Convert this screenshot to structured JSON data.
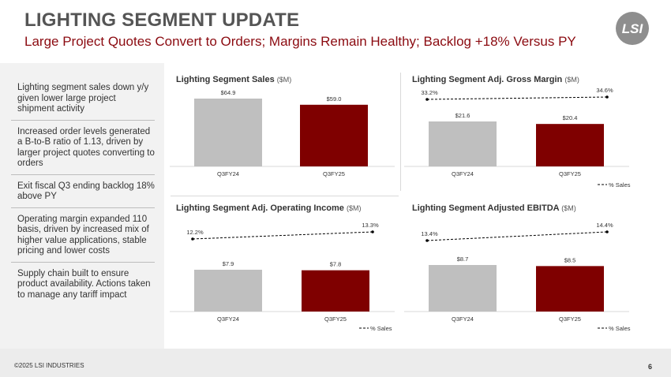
{
  "header": {
    "title": "LIGHTING SEGMENT UPDATE",
    "subtitle": "Large Project Quotes Convert to Orders; Margins Remain Healthy; Backlog +18% Versus PY",
    "logo_text": "LSI",
    "logo_color": "#8e8e8e"
  },
  "bullets": [
    "Lighting segment sales down y/y given lower large project shipment activity",
    "Increased order levels generated a B-to-B ratio of 1.13, driven by larger project quotes converting to orders",
    "Exit fiscal Q3 ending backlog 18% above PY",
    "Operating margin expanded 110 basis, driven by increased mix of higher value applications, stable pricing and lower costs",
    "Supply chain built to ensure product availability.  Actions taken to manage any tariff impact"
  ],
  "colors": {
    "prior_bar": "#bfbfbf",
    "current_bar": "#7f0000",
    "subtitle": "#8b0a10"
  },
  "chart_data": [
    {
      "type": "bar",
      "title": "Lighting Segment Sales",
      "unit": "($M)",
      "categories": [
        "Q3FY24",
        "Q3FY25"
      ],
      "values": [
        64.9,
        59.0
      ],
      "value_labels": [
        "$64.9",
        "$59.0"
      ],
      "legend": ""
    },
    {
      "type": "bar",
      "title": "Lighting Segment Adj. Gross Margin",
      "unit": "($M)",
      "categories": [
        "Q3FY24",
        "Q3FY25"
      ],
      "values": [
        21.6,
        20.4
      ],
      "value_labels": [
        "$21.6",
        "$20.4"
      ],
      "line_values": [
        33.2,
        34.6
      ],
      "line_labels": [
        "33.2%",
        "34.6%"
      ],
      "legend": "% Sales"
    },
    {
      "type": "bar",
      "title": "Lighting Segment Adj. Operating Income",
      "unit": "($M)",
      "categories": [
        "Q3FY24",
        "Q3FY25"
      ],
      "values": [
        7.9,
        7.8
      ],
      "value_labels": [
        "$7.9",
        "$7.8"
      ],
      "line_values": [
        12.2,
        13.3
      ],
      "line_labels": [
        "12.2%",
        "13.3%"
      ],
      "legend": "% Sales"
    },
    {
      "type": "bar",
      "title": "Lighting Segment Adjusted EBITDA",
      "unit": "($M)",
      "categories": [
        "Q3FY24",
        "Q3FY25"
      ],
      "values": [
        8.7,
        8.5
      ],
      "value_labels": [
        "$8.7",
        "$8.5"
      ],
      "line_values": [
        13.4,
        14.4
      ],
      "line_labels": [
        "13.4%",
        "14.4%"
      ],
      "legend": "% Sales"
    }
  ],
  "footer": {
    "copyright": "©2025 LSI INDUSTRIES",
    "page": "6"
  }
}
